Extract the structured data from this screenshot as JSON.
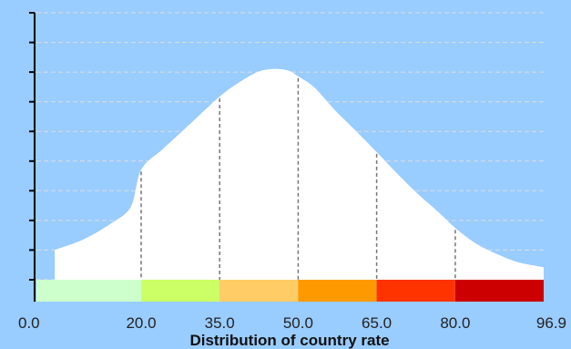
{
  "chart_data": {
    "type": "area",
    "title": "",
    "xlabel": "Distribution of country rate",
    "ylabel": "",
    "xlim": [
      0.0,
      96.9
    ],
    "grid": true,
    "x": [
      3.5,
      7,
      10,
      14,
      18,
      20,
      24,
      28,
      32,
      35,
      38,
      42,
      45,
      48,
      50,
      53,
      57,
      61,
      65,
      69,
      73,
      77,
      80,
      84,
      88,
      92,
      96.9
    ],
    "y": [
      0.112,
      0.135,
      0.161,
      0.208,
      0.272,
      0.412,
      0.487,
      0.559,
      0.632,
      0.686,
      0.73,
      0.776,
      0.789,
      0.784,
      0.762,
      0.722,
      0.636,
      0.558,
      0.478,
      0.396,
      0.319,
      0.25,
      0.194,
      0.135,
      0.096,
      0.066,
      0.047
    ],
    "dividers": [
      20.0,
      35.0,
      50.0,
      65.0,
      80.0
    ],
    "bands": [
      {
        "from": 0.0,
        "to": 20.0,
        "color": "#ccffcc"
      },
      {
        "from": 20.0,
        "to": 35.0,
        "color": "#ccff66"
      },
      {
        "from": 35.0,
        "to": 50.0,
        "color": "#ffcc66"
      },
      {
        "from": 50.0,
        "to": 65.0,
        "color": "#ff9900"
      },
      {
        "from": 65.0,
        "to": 80.0,
        "color": "#ff3300"
      },
      {
        "from": 80.0,
        "to": 96.9,
        "color": "#cc0000"
      }
    ],
    "tick_labels": [
      "0.0",
      "20.0",
      "35.0",
      "50.0",
      "65.0",
      "80.0",
      "96.9"
    ],
    "colors": {
      "background": "#99ccff",
      "area": "#ffffff",
      "gridline": "#dddddd",
      "divider": "#777777",
      "axis": "#000000"
    }
  }
}
